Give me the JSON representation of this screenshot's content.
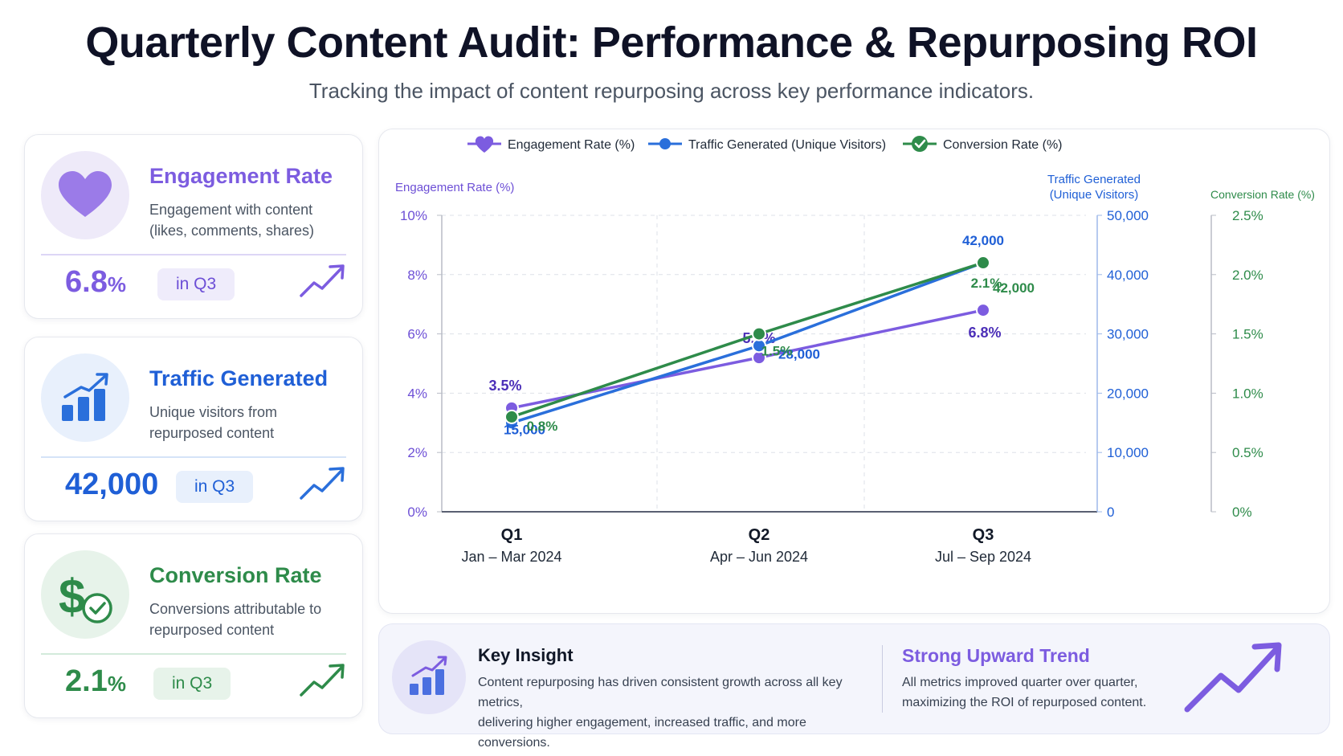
{
  "header": {
    "title": "Quarterly Content Audit: Performance & Repurposing ROI",
    "subtitle": "Tracking the impact of content repurposing across key performance indicators."
  },
  "cards": [
    {
      "title": "Engagement Rate",
      "desc_line1": "Engagement with content",
      "desc_line2": "(likes, comments, shares)",
      "value": "6.8",
      "unit": "%",
      "badge": "in Q3",
      "icon": "heart-icon",
      "color": "#7c5ce0"
    },
    {
      "title": "Traffic Generated",
      "desc_line1": "Unique visitors from",
      "desc_line2": "repurposed content",
      "value": "42,000",
      "unit": "",
      "badge": "in Q3",
      "icon": "bar-chart-icon",
      "color": "#1f5fd6"
    },
    {
      "title": "Conversion Rate",
      "desc_line1": "Conversions attributable to",
      "desc_line2": "repurposed content",
      "value": "2.1",
      "unit": "%",
      "badge": "in Q3",
      "icon": "dollar-check-icon",
      "color": "#2e8b4a"
    }
  ],
  "chart_data": {
    "type": "line",
    "categories": [
      "Q1",
      "Q2",
      "Q3"
    ],
    "category_sublabels": [
      "Jan – Mar 2024",
      "Apr – Jun 2024",
      "Jul – Sep 2024"
    ],
    "series": [
      {
        "name": "Engagement Rate (%)",
        "values": [
          3.5,
          5.2,
          6.8
        ],
        "labels": [
          "3.5%",
          "5.2%",
          "6.8%"
        ],
        "axis": "left",
        "color": "#7c5ce0"
      },
      {
        "name": "Traffic Generated (Unique Visitors)",
        "values": [
          15000,
          28000,
          42000
        ],
        "labels": [
          "15,000",
          "28,000",
          "42,000"
        ],
        "axis": "right1",
        "color": "#2a6fdb"
      },
      {
        "name": "Conversion Rate (%)",
        "values": [
          0.8,
          1.5,
          2.1
        ],
        "labels": [
          "0.8%",
          "1.5%",
          "2.1%"
        ],
        "axis": "right2",
        "color": "#2e8b4a"
      }
    ],
    "extra_annotation": "42,000",
    "axes": {
      "left": {
        "label": "Engagement Rate (%)",
        "range": [
          0,
          10
        ],
        "ticks": [
          "0%",
          "2%",
          "4%",
          "6%",
          "8%",
          "10%"
        ]
      },
      "right1": {
        "label_line1": "Traffic Generated",
        "label_line2": "(Unique Visitors)",
        "range": [
          0,
          50000
        ],
        "ticks": [
          "0",
          "10,000",
          "20,000",
          "30,000",
          "40,000",
          "50,000"
        ]
      },
      "right2": {
        "label": "Conversion Rate (%)",
        "range": [
          0,
          2.5
        ],
        "ticks": [
          "0%",
          "0.5%",
          "1.0%",
          "1.5%",
          "2.0%",
          "2.5%"
        ]
      }
    },
    "legend_position": "top",
    "grid": true
  },
  "insight": {
    "title": "Key Insight",
    "line1": "Content repurposing has driven consistent growth across all key metrics,",
    "line2": "delivering higher engagement, increased traffic, and more conversions.",
    "trend_title": "Strong Upward Trend",
    "trend_line1": "All metrics improved quarter over quarter,",
    "trend_line2": "maximizing the ROI of repurposed content."
  }
}
